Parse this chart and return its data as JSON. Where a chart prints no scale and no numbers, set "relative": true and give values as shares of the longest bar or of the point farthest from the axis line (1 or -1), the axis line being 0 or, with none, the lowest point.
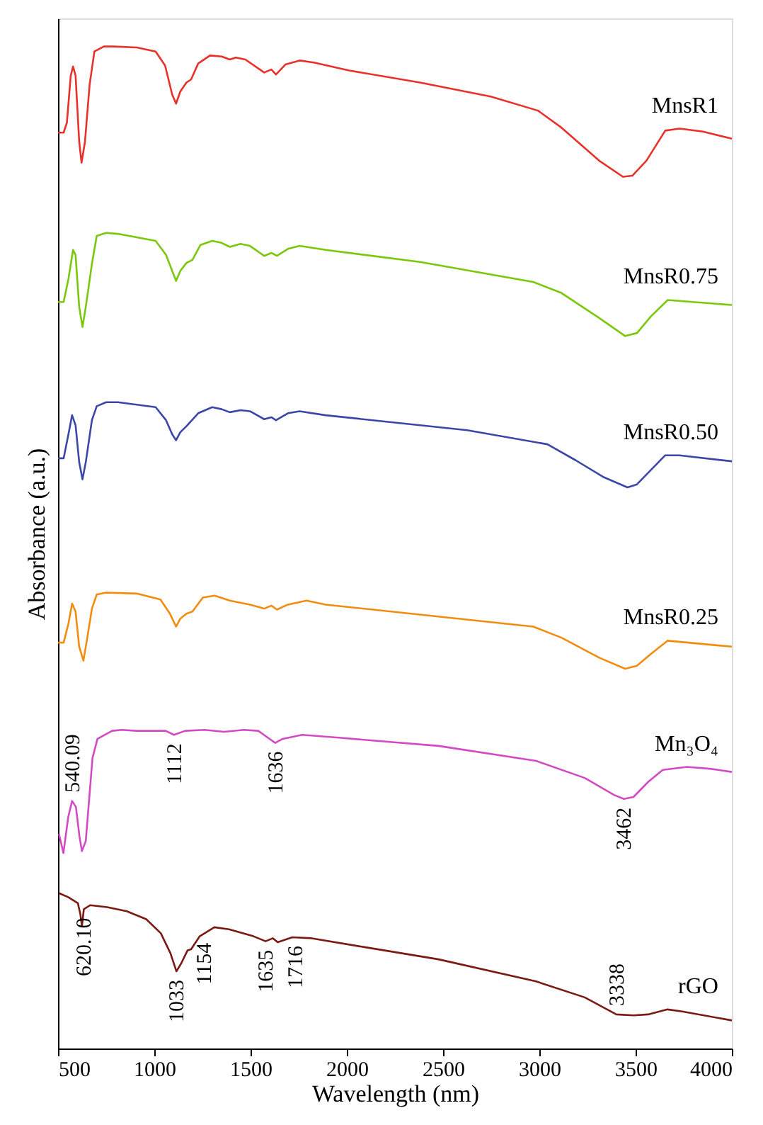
{
  "chart_data": {
    "type": "line",
    "xlabel": "Wavelength (nm)",
    "ylabel": "Absorbance (a.u.)",
    "relative": true,
    "grid": false,
    "xlim": [
      500,
      4000
    ],
    "xticks": [
      500,
      {
        "value": 1000,
        "label": "1000"
      },
      {
        "value": 1500,
        "label": "1500"
      },
      {
        "value": 2000,
        "label": "2000"
      },
      {
        "value": 2500,
        "label": "2500"
      },
      {
        "value": 3000,
        "label": "3000"
      },
      {
        "value": 3500,
        "label": "3500"
      },
      {
        "value": 4000,
        "label": "4000"
      }
    ],
    "series": [
      {
        "name": "MnsR1",
        "color": "#e8312a",
        "x": [
          500,
          529,
          546,
          566,
          578,
          591,
          610,
          622,
          640,
          664,
          689,
          738,
          787,
          909,
          1007,
          1056,
          1093,
          1113,
          1135,
          1167,
          1191,
          1228,
          1289,
          1350,
          1392,
          1424,
          1473,
          1571,
          1608,
          1632,
          1681,
          1755,
          1828,
          2012,
          2380,
          2747,
          2993,
          3115,
          3311,
          3434,
          3483,
          3556,
          3654,
          3728,
          3850,
          4000
        ],
        "values": [
          0.914,
          0.914,
          0.924,
          0.971,
          0.98,
          0.971,
          0.905,
          0.884,
          0.905,
          0.962,
          0.995,
          1.0,
          1.0,
          0.999,
          0.995,
          0.981,
          0.952,
          0.943,
          0.955,
          0.964,
          0.967,
          0.983,
          0.991,
          0.99,
          0.987,
          0.989,
          0.987,
          0.974,
          0.977,
          0.972,
          0.982,
          0.986,
          0.984,
          0.976,
          0.964,
          0.95,
          0.936,
          0.919,
          0.886,
          0.87,
          0.871,
          0.886,
          0.916,
          0.918,
          0.915,
          0.908
        ]
      },
      {
        "name": "MnsR0.75",
        "color": "#7ac70c",
        "x": [
          500,
          529,
          554,
          578,
          591,
          610,
          627,
          644,
          676,
          701,
          750,
          811,
          1007,
          1061,
          1093,
          1113,
          1135,
          1167,
          1198,
          1240,
          1301,
          1350,
          1392,
          1448,
          1497,
          1571,
          1608,
          1637,
          1694,
          1755,
          1890,
          2380,
          2968,
          3115,
          3311,
          3446,
          3507,
          3581,
          3667,
          4000
        ],
        "values": [
          0.745,
          0.745,
          0.768,
          0.797,
          0.792,
          0.74,
          0.72,
          0.74,
          0.783,
          0.811,
          0.814,
          0.813,
          0.806,
          0.792,
          0.776,
          0.766,
          0.776,
          0.784,
          0.787,
          0.802,
          0.806,
          0.804,
          0.8,
          0.803,
          0.801,
          0.791,
          0.794,
          0.791,
          0.798,
          0.801,
          0.797,
          0.785,
          0.765,
          0.754,
          0.729,
          0.711,
          0.714,
          0.731,
          0.747,
          0.742
        ]
      },
      {
        "name": "MnsR0.50",
        "color": "#3c46a8",
        "x": [
          500,
          529,
          554,
          573,
          591,
          610,
          627,
          644,
          676,
          701,
          750,
          811,
          1007,
          1061,
          1093,
          1113,
          1135,
          1167,
          1228,
          1301,
          1350,
          1392,
          1448,
          1497,
          1571,
          1608,
          1632,
          1694,
          1755,
          1890,
          2625,
          3042,
          3189,
          3336,
          3458,
          3507,
          3654,
          3728,
          4000
        ],
        "values": [
          0.589,
          0.589,
          0.613,
          0.632,
          0.622,
          0.585,
          0.568,
          0.585,
          0.627,
          0.641,
          0.645,
          0.645,
          0.64,
          0.627,
          0.613,
          0.607,
          0.615,
          0.621,
          0.634,
          0.64,
          0.638,
          0.635,
          0.637,
          0.636,
          0.628,
          0.63,
          0.627,
          0.634,
          0.636,
          0.632,
          0.617,
          0.603,
          0.587,
          0.57,
          0.56,
          0.563,
          0.592,
          0.592,
          0.586
        ]
      },
      {
        "name": "MnsR0.25",
        "color": "#f28c0f",
        "x": [
          500,
          529,
          554,
          573,
          591,
          610,
          632,
          652,
          676,
          701,
          750,
          909,
          1032,
          1081,
          1113,
          1135,
          1167,
          1198,
          1252,
          1314,
          1392,
          1497,
          1571,
          1608,
          1637,
          1694,
          1791,
          1890,
          2968,
          3115,
          3311,
          3446,
          3507,
          3581,
          3667,
          4000
        ],
        "values": [
          0.405,
          0.405,
          0.424,
          0.444,
          0.436,
          0.401,
          0.387,
          0.41,
          0.439,
          0.453,
          0.455,
          0.454,
          0.448,
          0.434,
          0.421,
          0.429,
          0.434,
          0.436,
          0.45,
          0.452,
          0.447,
          0.443,
          0.439,
          0.442,
          0.438,
          0.443,
          0.447,
          0.443,
          0.421,
          0.41,
          0.39,
          0.379,
          0.382,
          0.394,
          0.407,
          0.401
        ]
      },
      {
        "name": "Mn₃O₄",
        "color": "#d24bc4",
        "x": [
          505,
          528,
          553,
          573,
          593,
          611,
          624,
          644,
          679,
          705,
          781,
          831,
          907,
          1059,
          1102,
          1160,
          1261,
          1363,
          1464,
          1540,
          1591,
          1628,
          1667,
          1768,
          1970,
          2476,
          2983,
          3236,
          3388,
          3439,
          3489,
          3565,
          3641,
          3767,
          3894,
          4000
        ],
        "values": [
          0.214,
          0.195,
          0.231,
          0.247,
          0.241,
          0.212,
          0.197,
          0.207,
          0.29,
          0.309,
          0.317,
          0.318,
          0.317,
          0.317,
          0.313,
          0.317,
          0.318,
          0.316,
          0.318,
          0.317,
          0.31,
          0.305,
          0.309,
          0.313,
          0.31,
          0.302,
          0.287,
          0.27,
          0.253,
          0.249,
          0.251,
          0.266,
          0.278,
          0.281,
          0.279,
          0.276
        ]
      },
      {
        "name": "rGO",
        "color": "#7b1a12",
        "x": [
          505,
          553,
          603,
          616,
          624,
          634,
          667,
          755,
          857,
          958,
          1034,
          1084,
          1115,
          1140,
          1173,
          1191,
          1236,
          1312,
          1388,
          1515,
          1578,
          1616,
          1641,
          1717,
          1818,
          2097,
          2476,
          2983,
          3236,
          3400,
          3489,
          3565,
          3666,
          3742,
          4000
        ],
        "values": [
          0.155,
          0.151,
          0.145,
          0.134,
          0.122,
          0.139,
          0.143,
          0.141,
          0.137,
          0.129,
          0.115,
          0.095,
          0.077,
          0.085,
          0.098,
          0.099,
          0.112,
          0.121,
          0.119,
          0.112,
          0.107,
          0.11,
          0.106,
          0.111,
          0.11,
          0.101,
          0.089,
          0.067,
          0.051,
          0.034,
          0.033,
          0.034,
          0.039,
          0.037,
          0.028
        ]
      }
    ],
    "annotations": [
      {
        "text": "540.09",
        "x": 573,
        "y": 0.247
      },
      {
        "text": "620.10",
        "x": 634,
        "y": 0.139
      },
      {
        "text": "1112",
        "x": 1102,
        "y": 0.313
      },
      {
        "text": "1636",
        "x": 1628,
        "y": 0.305
      },
      {
        "text": "3462",
        "x": 3439,
        "y": 0.249
      },
      {
        "text": "1033",
        "x": 1115,
        "y": 0.077
      },
      {
        "text": "1154",
        "x": 1256,
        "y": 0.114
      },
      {
        "text": "1635",
        "x": 1578,
        "y": 0.107
      },
      {
        "text": "1716",
        "x": 1730,
        "y": 0.111
      },
      {
        "text": "3338",
        "x": 3400,
        "y": 0.034
      }
    ]
  }
}
